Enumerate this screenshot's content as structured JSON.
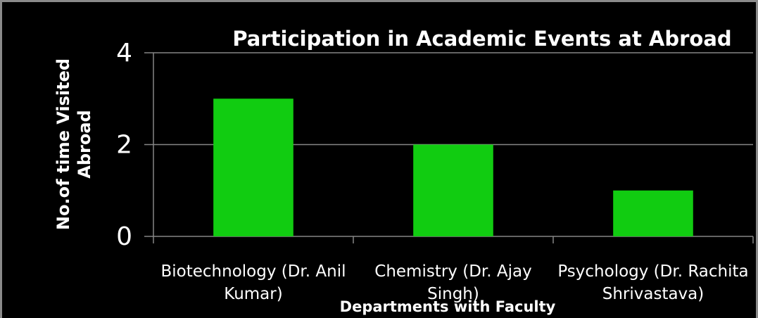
{
  "chart_data": {
    "type": "bar",
    "title": "Participation in Academic Events at Abroad",
    "categories": [
      "Biotechnology (Dr. Anil Kumar)",
      "Chemistry (Dr. Ajay Singh)",
      "Psychology (Dr. Rachita Shrivastava)"
    ],
    "values": [
      3,
      2,
      1
    ],
    "color": "#11cc11",
    "ylim": [
      0,
      4
    ],
    "yticks": [
      0,
      2,
      4
    ],
    "grid": true,
    "xlabel": "Departments with Faculty",
    "ylabel": "No.of time Visited Abroad"
  }
}
